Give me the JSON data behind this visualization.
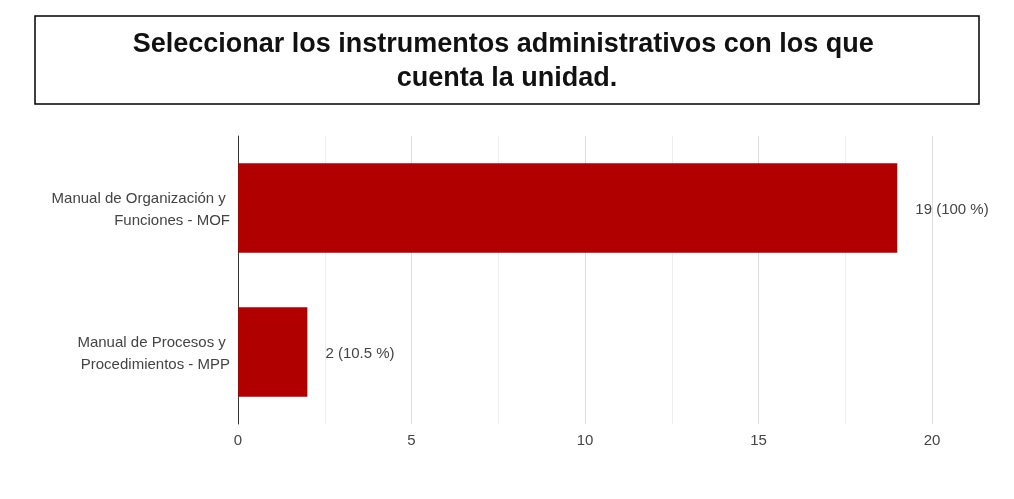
{
  "chart_data": {
    "type": "bar",
    "orientation": "horizontal",
    "title": "Seleccionar los instrumentos administrativos con los que cuenta la unidad.",
    "categories": [
      "Manual de Organización y Funciones - MOF",
      "Manual de Procesos y Procedimientos - MPP"
    ],
    "values": [
      19,
      2
    ],
    "value_labels": [
      "19 (100 %)",
      "2 (10.5 %)"
    ],
    "color": "#b00000",
    "xlim": [
      0,
      20
    ],
    "xticks": [
      0,
      5,
      10,
      15,
      20
    ],
    "grid": "x"
  }
}
